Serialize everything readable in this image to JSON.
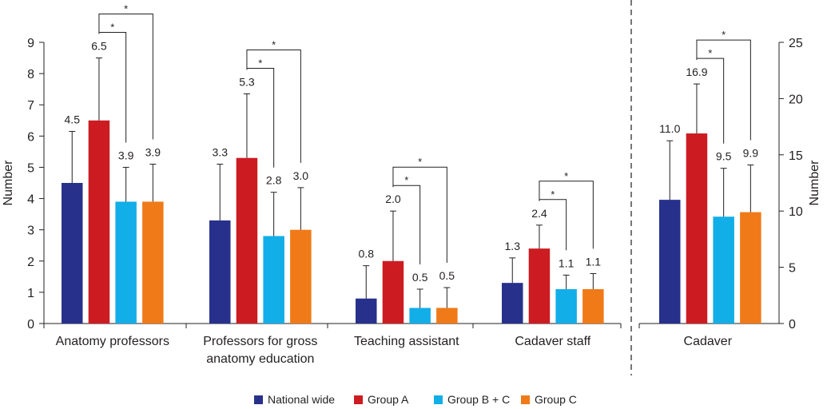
{
  "chart_data": [
    {
      "type": "bar",
      "ylabel": "Number",
      "ylim": [
        0,
        9
      ],
      "yticks": [
        0,
        1,
        2,
        3,
        4,
        5,
        6,
        7,
        8,
        9
      ],
      "categories": [
        "Anatomy professors",
        "Professors for gross anatomy education",
        "Teaching assistant",
        "Cadaver staff"
      ],
      "series": [
        {
          "name": "National wide",
          "values": [
            4.5,
            3.3,
            0.8,
            1.3
          ],
          "error_upper": [
            6.15,
            5.1,
            1.85,
            2.1
          ]
        },
        {
          "name": "Group A",
          "values": [
            6.5,
            5.3,
            2.0,
            2.4
          ],
          "error_upper": [
            8.5,
            7.35,
            3.6,
            3.15
          ]
        },
        {
          "name": "Group B + C",
          "values": [
            3.9,
            2.8,
            0.5,
            1.1
          ],
          "error_upper": [
            5.0,
            4.2,
            1.1,
            1.55
          ]
        },
        {
          "name": "Group C",
          "values": [
            3.9,
            3.0,
            0.5,
            1.1
          ],
          "error_upper": [
            5.1,
            4.35,
            1.15,
            1.6
          ]
        }
      ],
      "value_labels": [
        [
          "4.5",
          "6.5",
          "3.9",
          "3.9"
        ],
        [
          "3.3",
          "5.3",
          "2.8",
          "3.0"
        ],
        [
          "0.8",
          "2.0",
          "0.5",
          "0.5"
        ],
        [
          "1.3",
          "2.4",
          "1.1",
          "1.1"
        ]
      ],
      "significance": [
        {
          "category": "Anatomy professors",
          "compare": [
            "Group A",
            "Group B + C"
          ],
          "label": "*"
        },
        {
          "category": "Anatomy professors",
          "compare": [
            "Group A",
            "Group C"
          ],
          "label": "*"
        },
        {
          "category": "Professors for gross anatomy education",
          "compare": [
            "Group A",
            "Group B + C"
          ],
          "label": "*"
        },
        {
          "category": "Professors for gross anatomy education",
          "compare": [
            "Group A",
            "Group C"
          ],
          "label": "*"
        },
        {
          "category": "Teaching assistant",
          "compare": [
            "Group A",
            "Group B + C"
          ],
          "label": "*"
        },
        {
          "category": "Teaching assistant",
          "compare": [
            "Group A",
            "Group C"
          ],
          "label": "*"
        },
        {
          "category": "Cadaver staff",
          "compare": [
            "Group A",
            "Group B + C"
          ],
          "label": "*"
        },
        {
          "category": "Cadaver staff",
          "compare": [
            "Group A",
            "Group C"
          ],
          "label": "*"
        }
      ]
    },
    {
      "type": "bar",
      "ylabel": "Number",
      "ylim": [
        0,
        25
      ],
      "yticks": [
        0,
        5,
        10,
        15,
        20,
        25
      ],
      "categories": [
        "Cadaver"
      ],
      "series": [
        {
          "name": "National wide",
          "values": [
            11.0
          ],
          "error_upper": [
            16.25
          ]
        },
        {
          "name": "Group A",
          "values": [
            16.9
          ],
          "error_upper": [
            21.3
          ]
        },
        {
          "name": "Group B + C",
          "values": [
            9.5
          ],
          "error_upper": [
            13.8
          ]
        },
        {
          "name": "Group C",
          "values": [
            9.9
          ],
          "error_upper": [
            14.1
          ]
        }
      ],
      "value_labels": [
        [
          "11.0",
          "16.9",
          "9.5",
          "9.9"
        ]
      ],
      "significance": [
        {
          "category": "Cadaver",
          "compare": [
            "Group A",
            "Group B + C"
          ],
          "label": "*"
        },
        {
          "category": "Cadaver",
          "compare": [
            "Group A",
            "Group C"
          ],
          "label": "*"
        }
      ]
    }
  ],
  "legend": {
    "position": "bottom",
    "items": [
      {
        "label": "National wide",
        "color": "#27318b"
      },
      {
        "label": "Group A",
        "color": "#cc1c22"
      },
      {
        "label": "Group B + C",
        "color": "#12aee8"
      },
      {
        "label": "Group C",
        "color": "#f07a18"
      }
    ]
  },
  "category_display": [
    [
      "Anatomy professors"
    ],
    [
      "Professors for gross",
      "anatomy education"
    ],
    [
      "Teaching assistant"
    ],
    [
      "Cadaver staff"
    ],
    [
      "Cadaver"
    ]
  ]
}
